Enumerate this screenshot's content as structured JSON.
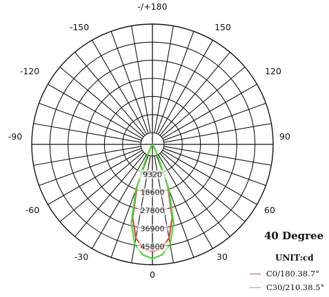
{
  "chart_data": {
    "type": "polar",
    "title": "40 Degree",
    "unit_label": "UNIT:cd",
    "angle_labels": [
      {
        "text": "-/+180",
        "angle": 180
      },
      {
        "text": "150",
        "angle": 150
      },
      {
        "text": "-150",
        "angle": -150
      },
      {
        "text": "120",
        "angle": 120
      },
      {
        "text": "-120",
        "angle": -120
      },
      {
        "text": "90",
        "angle": 90
      },
      {
        "text": "-90",
        "angle": -90
      },
      {
        "text": "60",
        "angle": 60
      },
      {
        "text": "-60",
        "angle": -60
      },
      {
        "text": "30",
        "angle": 30
      },
      {
        "text": "-30",
        "angle": -30
      },
      {
        "text": "0",
        "angle": 0
      }
    ],
    "radial_ticks": [
      "9320",
      "18600",
      "27800",
      "36900",
      "45800"
    ],
    "rmax": 45800,
    "rings": 5,
    "spoke_step_deg": 10,
    "series": [
      {
        "name": "C0/180.38.7°",
        "color": "#ee4040",
        "points": [
          [
            0,
            40800
          ],
          [
            5,
            39800
          ],
          [
            10,
            36200
          ],
          [
            15,
            29000
          ],
          [
            20,
            17000
          ],
          [
            25,
            4200
          ],
          [
            30,
            900
          ],
          [
            40,
            300
          ]
        ]
      },
      {
        "name": "C30/210.38.5°",
        "color": "#44dd33",
        "points": [
          [
            0,
            43500
          ],
          [
            5,
            42200
          ],
          [
            10,
            38600
          ],
          [
            15,
            31000
          ],
          [
            20,
            18300
          ],
          [
            25,
            4600
          ],
          [
            30,
            1000
          ],
          [
            40,
            300
          ]
        ]
      }
    ]
  }
}
